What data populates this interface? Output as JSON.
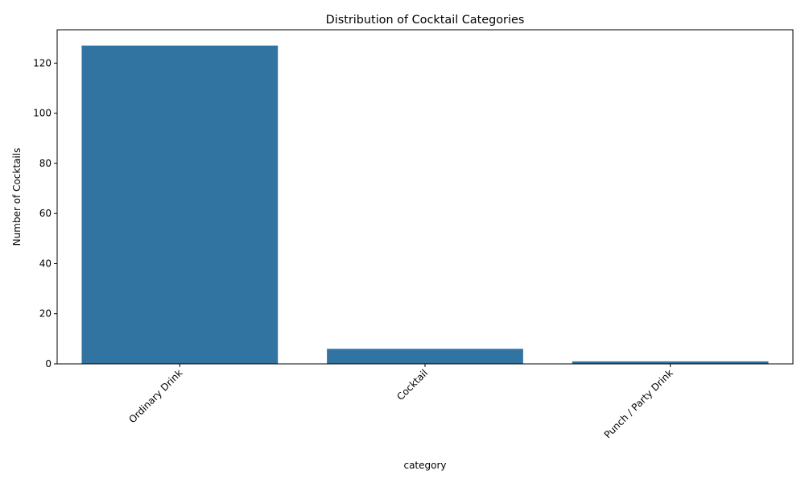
{
  "chart_data": {
    "type": "bar",
    "title": "Distribution of Cocktail Categories",
    "xlabel": "category",
    "ylabel": "Number of Cocktails",
    "categories": [
      "Ordinary Drink",
      "Cocktail",
      "Punch / Party Drink"
    ],
    "values": [
      127,
      6,
      1
    ],
    "ylim": [
      0,
      133.3
    ],
    "yticks": [
      0,
      20,
      40,
      60,
      80,
      100,
      120
    ],
    "xtick_rotation_deg": 45,
    "grid": false,
    "legend": "none",
    "bar_color": "#3274a1"
  }
}
